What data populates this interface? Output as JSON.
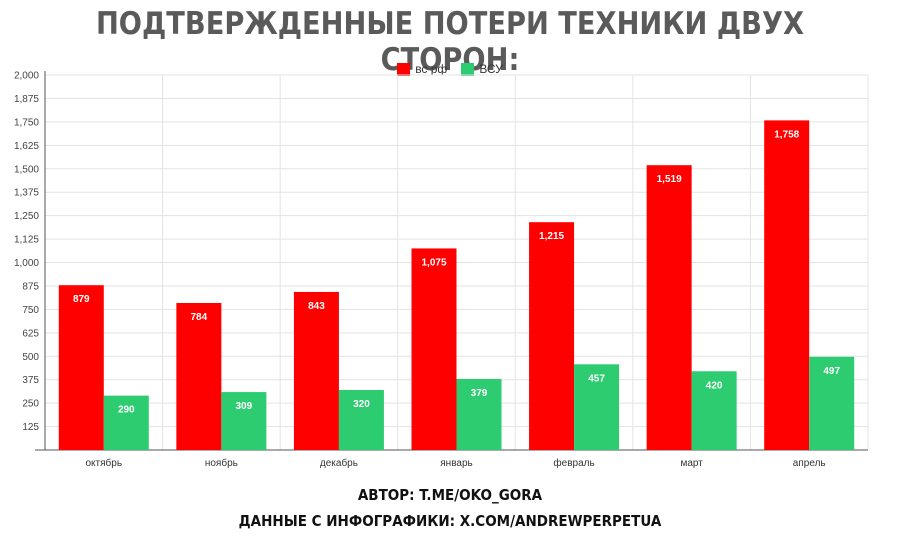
{
  "title": "ПОДТВЕРЖДЕННЫЕ ПОТЕРИ ТЕХНИКИ ДВУХ СТОРОН:",
  "footer": {
    "author": "АВТОР: T.ME/OKO_GORA",
    "source": "ДАННЫЕ С ИНФОГРАФИКИ: X.COM/ANDREWPERPETUA"
  },
  "colors": {
    "series1": "#ff0000",
    "series2": "#2ecc71",
    "grid": "#e3e3e3",
    "axis": "#555555"
  },
  "chart_data": {
    "type": "bar",
    "categories": [
      "октябрь",
      "ноябрь",
      "декабрь",
      "январь",
      "февраль",
      "март",
      "апрель"
    ],
    "series": [
      {
        "name": "вс рф",
        "values": [
          879,
          784,
          843,
          1075,
          1215,
          1519,
          1758
        ],
        "labels": [
          "879",
          "784",
          "843",
          "1,075",
          "1,215",
          "1,519",
          "1,758"
        ]
      },
      {
        "name": "ВСУ",
        "values": [
          290,
          309,
          320,
          379,
          457,
          420,
          497
        ],
        "labels": [
          "290",
          "309",
          "320",
          "379",
          "457",
          "420",
          "497"
        ]
      }
    ],
    "yticks": [
      "125",
      "250",
      "375",
      "500",
      "625",
      "750",
      "875",
      "1,000",
      "1,125",
      "1,250",
      "1,375",
      "1,500",
      "1,625",
      "1,750",
      "1,875",
      "2,000"
    ],
    "ylim": [
      0,
      2000
    ],
    "grid": true,
    "legend": "top-center"
  }
}
